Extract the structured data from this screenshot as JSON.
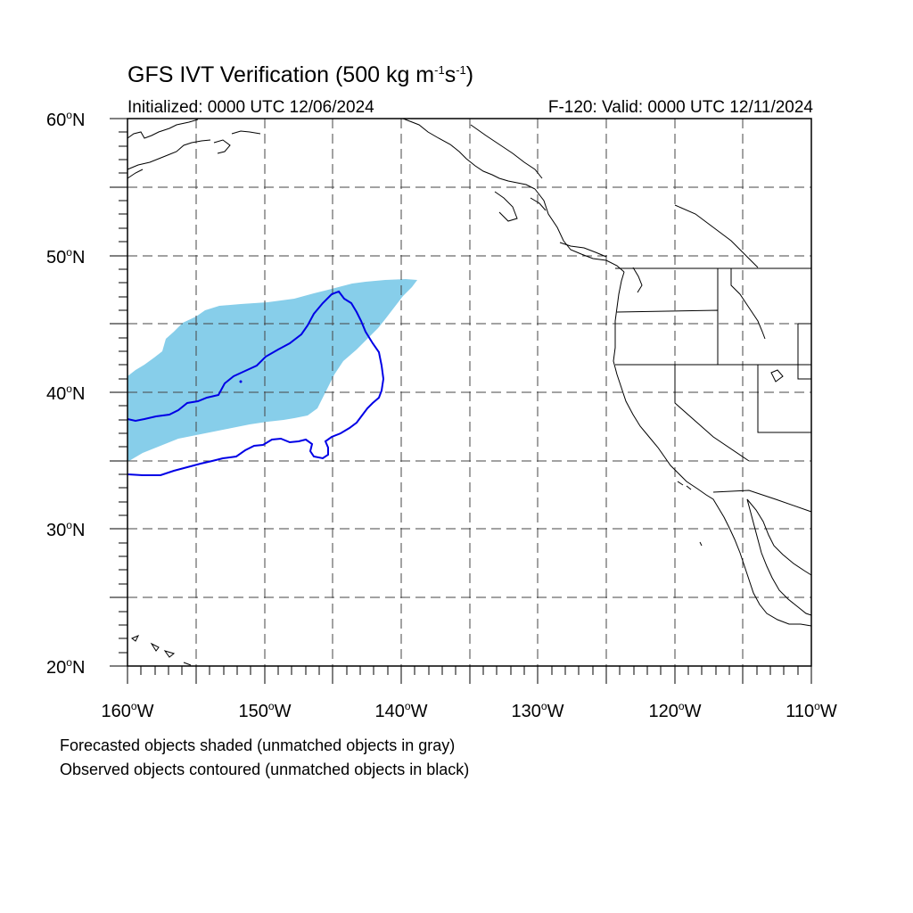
{
  "title": {
    "main": "GFS IVT Verification (500 kg m",
    "sup1": "-1",
    "mid": "s",
    "sup2": "-1",
    "end": ")"
  },
  "initialized": "Initialized: 0000 UTC 12/06/2024",
  "valid": "F-120: Valid: 0000 UTC 12/11/2024",
  "lat_labels": [
    {
      "value": "60",
      "unit": "o",
      "dir": "N"
    },
    {
      "value": "50",
      "unit": "o",
      "dir": "N"
    },
    {
      "value": "40",
      "unit": "o",
      "dir": "N"
    },
    {
      "value": "30",
      "unit": "o",
      "dir": "N"
    },
    {
      "value": "20",
      "unit": "o",
      "dir": "N"
    }
  ],
  "lon_labels": [
    {
      "value": "160",
      "unit": "o",
      "dir": "W"
    },
    {
      "value": "150",
      "unit": "o",
      "dir": "W"
    },
    {
      "value": "140",
      "unit": "o",
      "dir": "W"
    },
    {
      "value": "130",
      "unit": "o",
      "dir": "W"
    },
    {
      "value": "120",
      "unit": "o",
      "dir": "W"
    },
    {
      "value": "110",
      "unit": "o",
      "dir": "W"
    }
  ],
  "notes": [
    "Forecasted objects shaded (unmatched objects in gray)",
    "Observed objects contoured (unmatched objects in black)"
  ],
  "colors": {
    "forecast_fill": "#87ceea",
    "observed_contour": "#0000e6",
    "coastline": "#000000",
    "grid": "#444444"
  },
  "map_extent": {
    "lon_min": -160,
    "lon_max": -110,
    "lat_min": 20,
    "lat_max": 60
  }
}
